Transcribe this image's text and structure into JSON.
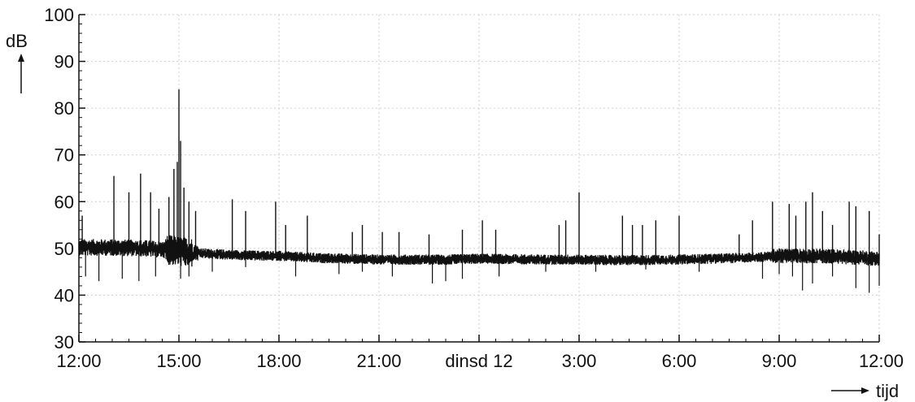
{
  "chart_data": {
    "type": "line",
    "title": "",
    "xlabel": "tijd",
    "ylabel": "dB",
    "ylim": [
      30,
      100
    ],
    "yticks": [
      30,
      40,
      50,
      60,
      70,
      80,
      90,
      100
    ],
    "xticks": [
      {
        "hour": 0,
        "label": "12:00"
      },
      {
        "hour": 3,
        "label": "15:00"
      },
      {
        "hour": 6,
        "label": "18:00"
      },
      {
        "hour": 9,
        "label": "21:00"
      },
      {
        "hour": 12,
        "label": "dinsd 12"
      },
      {
        "hour": 15,
        "label": "3:00"
      },
      {
        "hour": 18,
        "label": "6:00"
      },
      {
        "hour": 21,
        "label": "9:00"
      },
      {
        "hour": 24,
        "label": "12:00"
      }
    ],
    "grid": true,
    "series": [
      {
        "color": "#111111",
        "baseline": [
          [
            0,
            50.2
          ],
          [
            1,
            50.2
          ],
          [
            2,
            50.0
          ],
          [
            2.8,
            49.6
          ],
          [
            3.2,
            49.2
          ],
          [
            4,
            48.8
          ],
          [
            5,
            48.5
          ],
          [
            6,
            48.4
          ],
          [
            7,
            48.0
          ],
          [
            8,
            47.8
          ],
          [
            9,
            47.6
          ],
          [
            10,
            47.6
          ],
          [
            11,
            47.6
          ],
          [
            12,
            47.8
          ],
          [
            13,
            47.7
          ],
          [
            14,
            47.6
          ],
          [
            15,
            47.6
          ],
          [
            16,
            47.5
          ],
          [
            17,
            47.5
          ],
          [
            18,
            47.6
          ],
          [
            19,
            47.8
          ],
          [
            20,
            48.0
          ],
          [
            21,
            48.4
          ],
          [
            22,
            48.4
          ],
          [
            23,
            48.2
          ],
          [
            24,
            47.8
          ]
        ],
        "peaks": [
          [
            0.1,
            57
          ],
          [
            1.05,
            65.5
          ],
          [
            1.5,
            62
          ],
          [
            1.85,
            66
          ],
          [
            2.15,
            62
          ],
          [
            2.4,
            58.5
          ],
          [
            2.7,
            61
          ],
          [
            2.85,
            67
          ],
          [
            2.95,
            68.5
          ],
          [
            3.0,
            84
          ],
          [
            3.05,
            73
          ],
          [
            3.15,
            63
          ],
          [
            3.3,
            60
          ],
          [
            3.5,
            58
          ],
          [
            4.6,
            60.5
          ],
          [
            5.0,
            58
          ],
          [
            5.9,
            60
          ],
          [
            6.2,
            55
          ],
          [
            6.85,
            57
          ],
          [
            8.2,
            53.5
          ],
          [
            8.5,
            55
          ],
          [
            9.1,
            53.5
          ],
          [
            9.6,
            53.5
          ],
          [
            10.5,
            53
          ],
          [
            11.5,
            54
          ],
          [
            12.1,
            56
          ],
          [
            12.5,
            54
          ],
          [
            14.4,
            55
          ],
          [
            14.6,
            56
          ],
          [
            15.0,
            62
          ],
          [
            16.3,
            57
          ],
          [
            16.6,
            55
          ],
          [
            16.9,
            55
          ],
          [
            17.3,
            56
          ],
          [
            18.0,
            57
          ],
          [
            19.8,
            53
          ],
          [
            20.2,
            56
          ],
          [
            20.8,
            60
          ],
          [
            21.3,
            59.5
          ],
          [
            21.5,
            57
          ],
          [
            21.8,
            60
          ],
          [
            22.0,
            62
          ],
          [
            22.3,
            58
          ],
          [
            22.6,
            55
          ],
          [
            23.1,
            60
          ],
          [
            23.3,
            59
          ],
          [
            23.7,
            58
          ],
          [
            24.0,
            53
          ]
        ],
        "dips": [
          [
            0.2,
            44
          ],
          [
            0.6,
            43
          ],
          [
            1.3,
            43.5
          ],
          [
            1.8,
            43
          ],
          [
            2.3,
            44
          ],
          [
            3.05,
            43.5
          ],
          [
            3.3,
            44
          ],
          [
            4.0,
            45
          ],
          [
            5.0,
            46
          ],
          [
            6.5,
            44
          ],
          [
            7.8,
            44.5
          ],
          [
            8.5,
            45
          ],
          [
            9.4,
            44
          ],
          [
            10.6,
            42.5
          ],
          [
            11.0,
            43
          ],
          [
            11.5,
            43.5
          ],
          [
            12.6,
            44
          ],
          [
            14.0,
            45
          ],
          [
            15.5,
            45
          ],
          [
            17.0,
            45.5
          ],
          [
            18.6,
            45
          ],
          [
            20.5,
            43.5
          ],
          [
            21.0,
            44.5
          ],
          [
            21.4,
            44
          ],
          [
            21.7,
            41
          ],
          [
            22.0,
            42.5
          ],
          [
            22.6,
            44
          ],
          [
            23.3,
            41.5
          ],
          [
            23.7,
            40.5
          ],
          [
            24.0,
            42
          ]
        ]
      }
    ]
  }
}
